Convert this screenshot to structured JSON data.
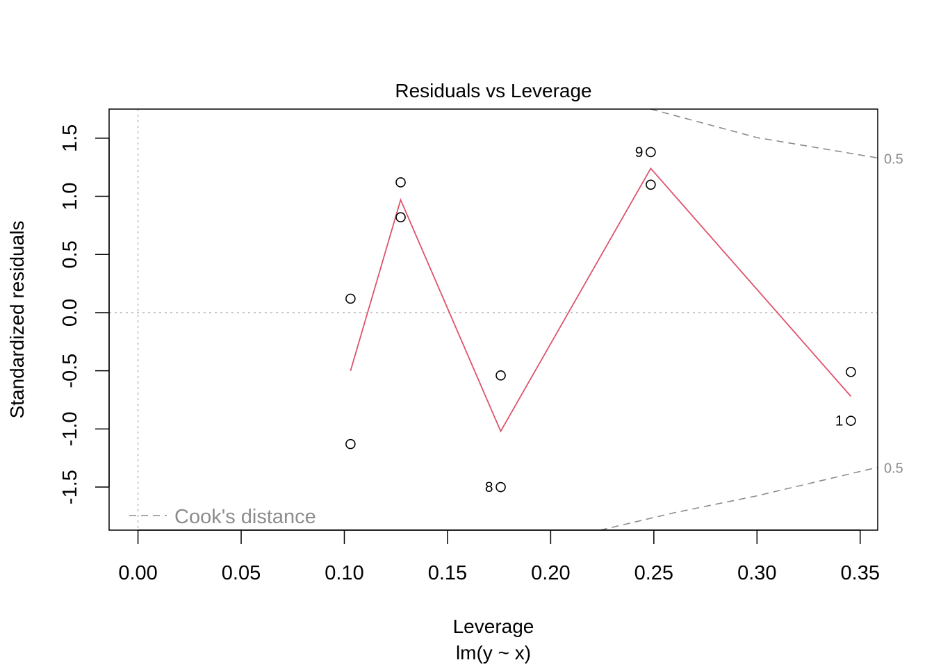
{
  "chart_data": {
    "type": "scatter",
    "title": "Residuals vs Leverage",
    "xlabel": "Leverage",
    "subtitle": "lm(y ~ x)",
    "ylabel": "Standardized residuals",
    "xlim": [
      -0.014,
      0.3585
    ],
    "ylim": [
      -1.87,
      1.75
    ],
    "x_ticks": [
      0.0,
      0.05,
      0.1,
      0.15,
      0.2,
      0.25,
      0.3,
      0.35
    ],
    "x_tick_labels": [
      "0.00",
      "0.05",
      "0.10",
      "0.15",
      "0.20",
      "0.25",
      "0.30",
      "0.35"
    ],
    "y_ticks": [
      -1.5,
      -1.0,
      -0.5,
      0.0,
      0.5,
      1.0,
      1.5
    ],
    "y_tick_labels": [
      "-1.5",
      "-1.0",
      "-0.5",
      "0.0",
      "0.5",
      "1.0",
      "1.5"
    ],
    "points": [
      {
        "x": 0.103,
        "y": 0.12,
        "label": ""
      },
      {
        "x": 0.103,
        "y": -1.13,
        "label": ""
      },
      {
        "x": 0.1273,
        "y": 1.12,
        "label": ""
      },
      {
        "x": 0.1273,
        "y": 0.82,
        "label": ""
      },
      {
        "x": 0.1758,
        "y": -0.54,
        "label": ""
      },
      {
        "x": 0.1758,
        "y": -1.5,
        "label": "8"
      },
      {
        "x": 0.2485,
        "y": 1.38,
        "label": "9"
      },
      {
        "x": 0.2485,
        "y": 1.1,
        "label": ""
      },
      {
        "x": 0.3455,
        "y": -0.51,
        "label": ""
      },
      {
        "x": 0.3455,
        "y": -0.93,
        "label": "1"
      }
    ],
    "smoother": {
      "color": "#DF536B",
      "x": [
        0.103,
        0.1273,
        0.1758,
        0.2485,
        0.3455
      ],
      "y": [
        -0.5,
        0.97,
        -1.02,
        1.24,
        -0.72
      ]
    },
    "reference_lines": {
      "h": 0,
      "v": 0,
      "color": "#BEBEBE"
    },
    "cooks_distance": {
      "level": 0.5,
      "label": "0.5",
      "color": "#8C8C8C",
      "upper": {
        "x": [
          0.2485,
          0.3,
          0.3585
        ],
        "y": [
          1.75,
          1.505,
          1.33
        ]
      },
      "lower": {
        "x": [
          0.224,
          0.26,
          0.3,
          0.3585
        ],
        "y": [
          -1.87,
          -1.72,
          -1.575,
          -1.33
        ]
      }
    },
    "legend": {
      "label": "Cook's distance",
      "position": "bottom-left"
    }
  }
}
